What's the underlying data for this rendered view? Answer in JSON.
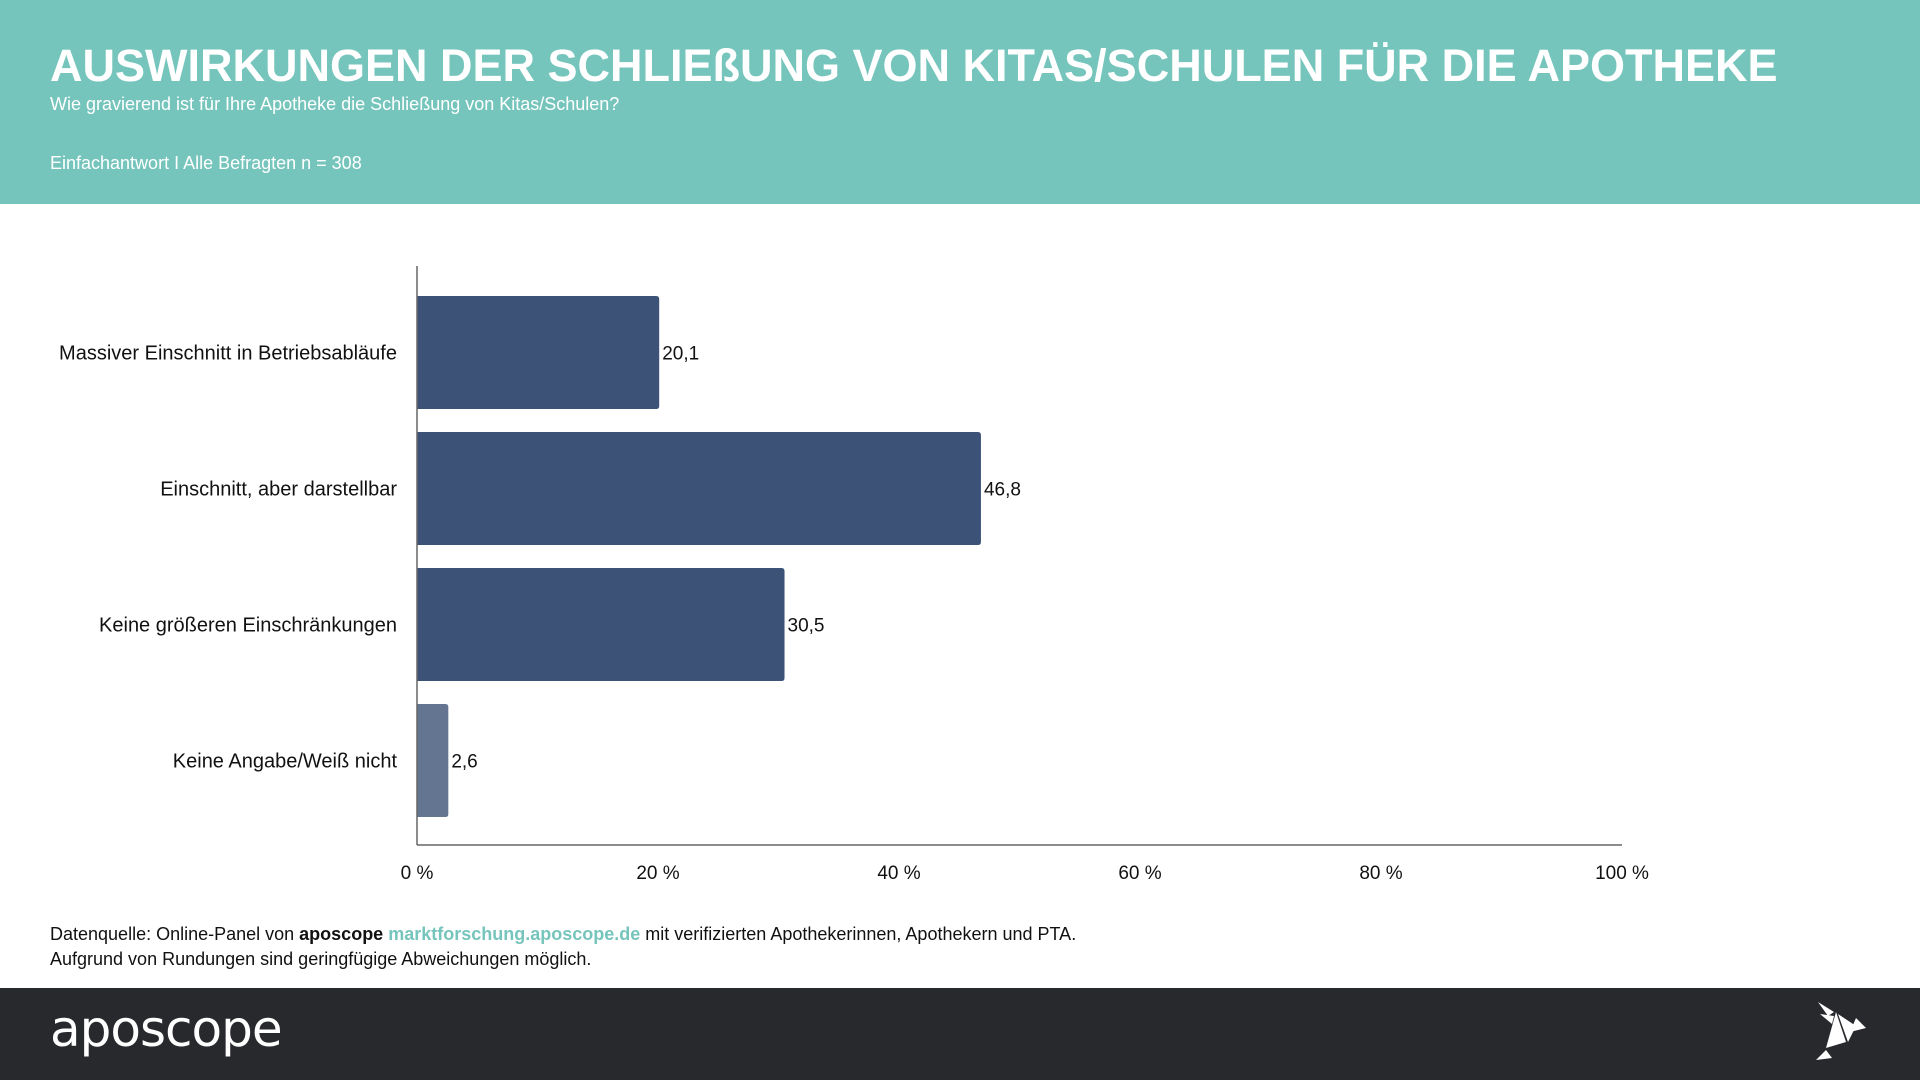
{
  "header": {
    "title": "AUSWIRKUNGEN DER SCHLIEßUNG VON KITAS/SCHULEN FÜR DIE APOTHEKE",
    "subtitle": "Wie gravierend ist für Ihre Apotheke die Schließung von Kitas/Schulen?",
    "note": "Einfachantwort I Alle Befragten n = 308"
  },
  "colors": {
    "header_bg": "#76c5bc",
    "bar_primary": "#3d5277",
    "bar_secondary": "#647591",
    "footer_bg": "#28292d"
  },
  "chart_data": {
    "type": "bar",
    "orientation": "horizontal",
    "title": "AUSWIRKUNGEN DER SCHLIEßUNG VON KITAS/SCHULEN FÜR DIE APOTHEKE",
    "xlabel": "",
    "ylabel": "",
    "categories": [
      "Massiver Einschnitt in Betriebsabläufe",
      "Einschnitt, aber darstellbar",
      "Keine größeren Einschränkungen",
      "Keine Angabe/Weiß nicht"
    ],
    "values": [
      20.1,
      46.8,
      30.5,
      2.6
    ],
    "value_labels": [
      "20,1",
      "46,8",
      "30,5",
      "2,6"
    ],
    "xlim": [
      0,
      100
    ],
    "ticks": [
      0,
      20,
      40,
      60,
      80,
      100
    ],
    "tick_labels": [
      "0 %",
      "20 %",
      "40 %",
      "60 %",
      "80 %",
      "100 %"
    ],
    "grid": false,
    "legend": "none"
  },
  "source": {
    "prefix": "Datenquelle: Online-Panel von ",
    "brand": "aposcope",
    "link": "marktforschung.aposcope.de",
    "suffix": " mit verifizierten Apothekerinnen, Apothekern und PTA.",
    "line2": "Aufgrund von Rundungen sind geringfügige Abweichungen möglich."
  },
  "footer": {
    "logo": "aposcope",
    "icon": "origami-bird-icon"
  }
}
